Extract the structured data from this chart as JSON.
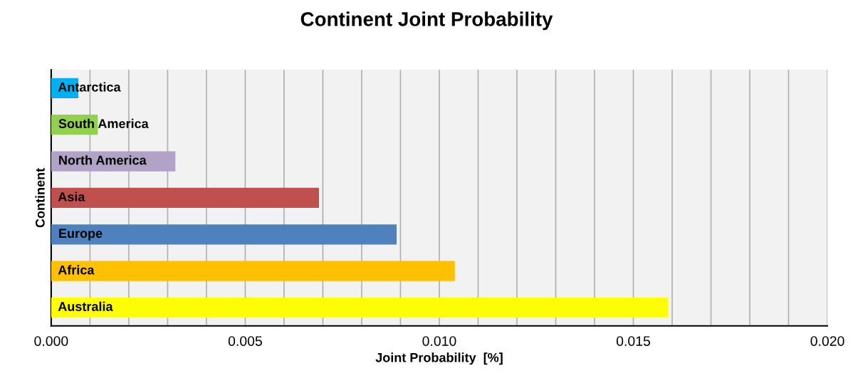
{
  "chart_data": {
    "type": "bar",
    "orientation": "horizontal",
    "title": "Continent Joint Probability",
    "xlabel": "Joint Probability  [%]",
    "ylabel": "Continent",
    "categories": [
      "Antarctica",
      "South America",
      "North America",
      "Asia",
      "Europe",
      "Africa",
      "Australia"
    ],
    "values": [
      0.0007,
      0.0012,
      0.0032,
      0.0069,
      0.0089,
      0.0104,
      0.0159
    ],
    "colors": [
      "#00b0f0",
      "#92d050",
      "#b3a2c7",
      "#c0504d",
      "#4f81bd",
      "#ffc000",
      "#ffff00"
    ],
    "xlim": [
      0,
      0.02
    ],
    "xticks": [
      {
        "value": 0,
        "label": "0.000"
      },
      {
        "value": 0.001,
        "label": null
      },
      {
        "value": 0.002,
        "label": null
      },
      {
        "value": 0.003,
        "label": null
      },
      {
        "value": 0.004,
        "label": null
      },
      {
        "value": 0.005,
        "label": "0.005"
      },
      {
        "value": 0.006,
        "label": null
      },
      {
        "value": 0.007,
        "label": null
      },
      {
        "value": 0.008,
        "label": null
      },
      {
        "value": 0.009,
        "label": null
      },
      {
        "value": 0.01,
        "label": "0.010"
      },
      {
        "value": 0.011,
        "label": null
      },
      {
        "value": 0.012,
        "label": null
      },
      {
        "value": 0.013,
        "label": null
      },
      {
        "value": 0.014,
        "label": null
      },
      {
        "value": 0.015,
        "label": "0.015"
      },
      {
        "value": 0.016,
        "label": null
      },
      {
        "value": 0.017,
        "label": null
      },
      {
        "value": 0.018,
        "label": null
      },
      {
        "value": 0.019,
        "label": null
      },
      {
        "value": 0.02,
        "label": "0.020"
      }
    ],
    "grid": "x",
    "tick_labels": "x"
  }
}
